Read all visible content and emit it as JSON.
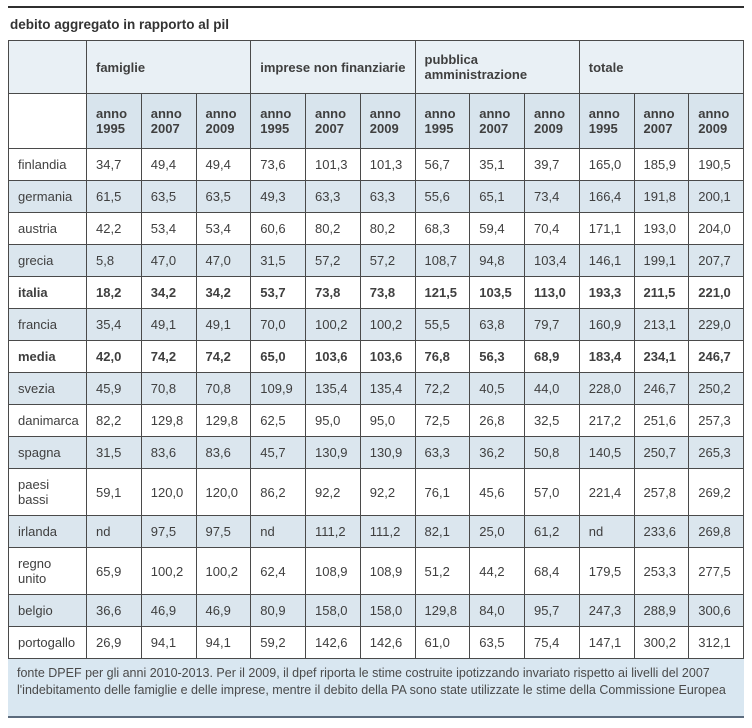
{
  "title": "debito aggregato in rapporto al pil",
  "colors": {
    "border": "#4a4a4a",
    "group_header_bg": "#e9f0f5",
    "year_header_bg": "#d8e4ed",
    "accent_row_bg": "#dbe6ee",
    "footer_bg": "#d9e7f1",
    "bottom_rule": "#5b6b7d",
    "text": "#3f3f3f"
  },
  "table": {
    "corner_label": "",
    "groups": [
      "famiglie",
      "imprese non finanziarie",
      "pubblica amministrazione",
      "totale"
    ],
    "year_columns": [
      "anno 1995",
      "anno 2007",
      "anno 2009"
    ],
    "rows": [
      {
        "label": "finlandia",
        "bold": false,
        "values": [
          "34,7",
          "49,4",
          "49,4",
          "73,6",
          "101,3",
          "101,3",
          "56,7",
          "35,1",
          "39,7",
          "165,0",
          "185,9",
          "190,5"
        ]
      },
      {
        "label": "germania",
        "bold": false,
        "values": [
          "61,5",
          "63,5",
          "63,5",
          "49,3",
          "63,3",
          "63,3",
          "55,6",
          "65,1",
          "73,4",
          "166,4",
          "191,8",
          "200,1"
        ]
      },
      {
        "label": "austria",
        "bold": false,
        "values": [
          "42,2",
          "53,4",
          "53,4",
          "60,6",
          "80,2",
          "80,2",
          "68,3",
          "59,4",
          "70,4",
          "171,1",
          "193,0",
          "204,0"
        ]
      },
      {
        "label": "grecia",
        "bold": false,
        "values": [
          "5,8",
          "47,0",
          "47,0",
          "31,5",
          "57,2",
          "57,2",
          "108,7",
          "94,8",
          "103,4",
          "146,1",
          "199,1",
          "207,7"
        ]
      },
      {
        "label": "italia",
        "bold": true,
        "values": [
          "18,2",
          "34,2",
          "34,2",
          "53,7",
          "73,8",
          "73,8",
          "121,5",
          "103,5",
          "113,0",
          "193,3",
          "211,5",
          "221,0"
        ]
      },
      {
        "label": "francia",
        "bold": false,
        "values": [
          "35,4",
          "49,1",
          "49,1",
          "70,0",
          "100,2",
          "100,2",
          "55,5",
          "63,8",
          "79,7",
          "160,9",
          "213,1",
          "229,0"
        ]
      },
      {
        "label": "media",
        "bold": true,
        "values": [
          "42,0",
          "74,2",
          "74,2",
          "65,0",
          "103,6",
          "103,6",
          "76,8",
          "56,3",
          "68,9",
          "183,4",
          "234,1",
          "246,7"
        ]
      },
      {
        "label": "svezia",
        "bold": false,
        "values": [
          "45,9",
          "70,8",
          "70,8",
          "109,9",
          "135,4",
          "135,4",
          "72,2",
          "40,5",
          "44,0",
          "228,0",
          "246,7",
          "250,2"
        ]
      },
      {
        "label": "danimarca",
        "bold": false,
        "values": [
          "82,2",
          "129,8",
          "129,8",
          "62,5",
          "95,0",
          "95,0",
          "72,5",
          "26,8",
          "32,5",
          "217,2",
          "251,6",
          "257,3"
        ]
      },
      {
        "label": "spagna",
        "bold": false,
        "values": [
          "31,5",
          "83,6",
          "83,6",
          "45,7",
          "130,9",
          "130,9",
          "63,3",
          "36,2",
          "50,8",
          "140,5",
          "250,7",
          "265,3"
        ]
      },
      {
        "label": "paesi bassi",
        "bold": false,
        "values": [
          "59,1",
          "120,0",
          "120,0",
          "86,2",
          "92,2",
          "92,2",
          "76,1",
          "45,6",
          "57,0",
          "221,4",
          "257,8",
          "269,2"
        ]
      },
      {
        "label": "irlanda",
        "bold": false,
        "values": [
          "nd",
          "97,5",
          "97,5",
          "nd",
          "111,2",
          "111,2",
          "82,1",
          "25,0",
          "61,2",
          "nd",
          "233,6",
          "269,8"
        ]
      },
      {
        "label": "regno unito",
        "bold": false,
        "values": [
          "65,9",
          "100,2",
          "100,2",
          "62,4",
          "108,9",
          "108,9",
          "51,2",
          "44,2",
          "68,4",
          "179,5",
          "253,3",
          "277,5"
        ]
      },
      {
        "label": "belgio",
        "bold": false,
        "values": [
          "36,6",
          "46,9",
          "46,9",
          "80,9",
          "158,0",
          "158,0",
          "129,8",
          "84,0",
          "95,7",
          "247,3",
          "288,9",
          "300,6"
        ]
      },
      {
        "label": "portogallo",
        "bold": false,
        "values": [
          "26,9",
          "94,1",
          "94,1",
          "59,2",
          "142,6",
          "142,6",
          "61,0",
          "63,5",
          "75,4",
          "147,1",
          "300,2",
          "312,1"
        ]
      }
    ]
  },
  "footer": {
    "note": "fonte DPEF per gli anni 2010-2013. Per il 2009, il dpef riporta le stime costruite ipotizzando invariato rispetto ai livelli del 2007 l'indebitamento delle famiglie e delle imprese, mentre il debito della PA sono state utilizzate le stime della Commissione Europea"
  }
}
